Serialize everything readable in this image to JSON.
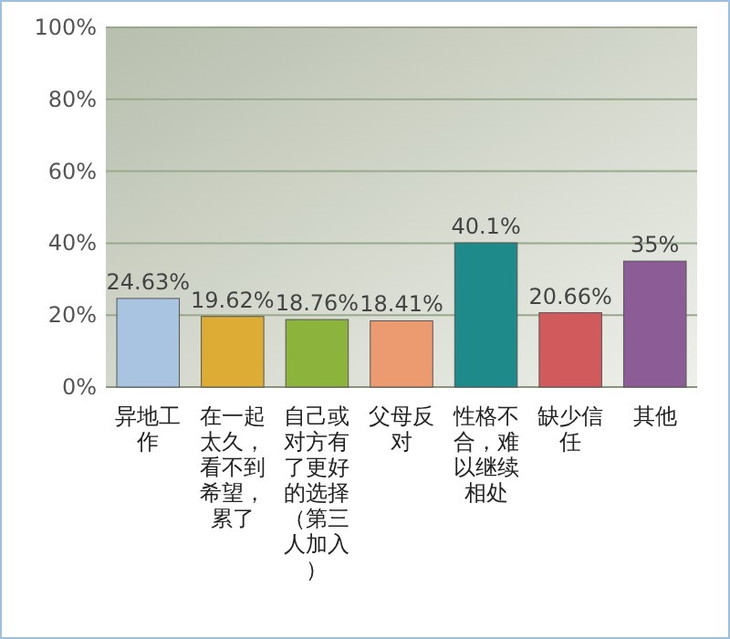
{
  "chart_data": {
    "type": "bar",
    "categories": [
      "异地工作",
      "在一起太久，看不到希望，累了",
      "自己或对方有了更好的选择（第三人加入）",
      "父母反对",
      "性格不合，难以继续相处",
      "缺少信任",
      "其他"
    ],
    "values": [
      24.63,
      19.62,
      18.76,
      18.41,
      40.1,
      20.66,
      35
    ],
    "value_labels": [
      "24.63%",
      "19.62%",
      "18.76%",
      "18.41%",
      "40.1%",
      "20.66%",
      "35%"
    ],
    "colors": [
      "#a9c4e0",
      "#dcac34",
      "#8cb43c",
      "#ec9a70",
      "#1e8a8a",
      "#d05a5c",
      "#8c5c96"
    ],
    "ylim": [
      0,
      100
    ],
    "yticks": [
      {
        "value": 0,
        "label": "0%"
      },
      {
        "value": 20,
        "label": "20%"
      },
      {
        "value": 40,
        "label": "40%"
      },
      {
        "value": 60,
        "label": "60%"
      },
      {
        "value": 80,
        "label": "80%"
      },
      {
        "value": 100,
        "label": "100%"
      }
    ],
    "grid": "y"
  }
}
